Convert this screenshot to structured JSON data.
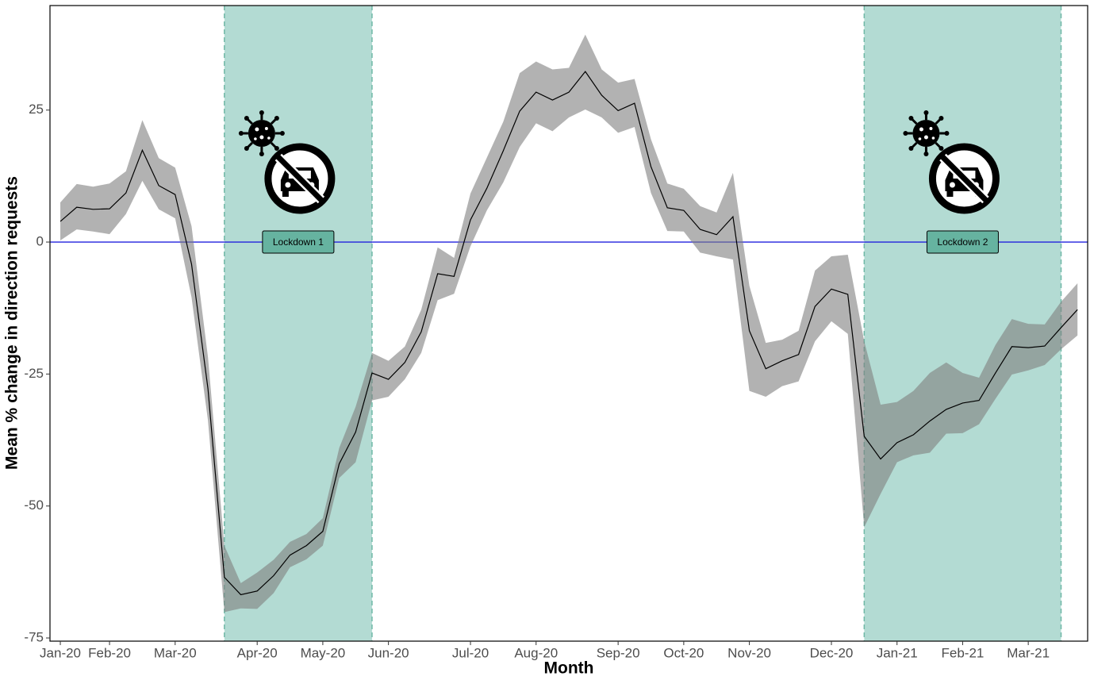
{
  "chart_data": {
    "type": "line",
    "x_label": "Month",
    "y_label": "Mean % change in direction requests",
    "categories": [
      "Jan-20",
      null,
      null,
      "Feb-20",
      null,
      null,
      null,
      "Mar-20",
      null,
      null,
      null,
      null,
      "Apr-20",
      null,
      null,
      null,
      "May-20",
      null,
      null,
      null,
      "Jun-20",
      null,
      null,
      null,
      null,
      "Jul-20",
      null,
      null,
      null,
      "Aug-20",
      null,
      null,
      null,
      null,
      "Sep-20",
      null,
      null,
      null,
      "Oct-20",
      null,
      null,
      null,
      "Nov-20",
      null,
      null,
      null,
      null,
      "Dec-20",
      null,
      null,
      null,
      "Jan-21",
      null,
      null,
      null,
      "Feb-21",
      null,
      null,
      null,
      "Mar-21",
      null,
      null,
      null
    ],
    "series": [
      {
        "color": "#000000",
        "band_color": "#7f7f7f",
        "values": [
          3.9,
          6.6,
          6.2,
          6.3,
          9.3,
          17.4,
          10.7,
          9.0,
          -4.2,
          -27.8,
          -63.5,
          -66.8,
          -66.1,
          -63.2,
          -59.3,
          -57.5,
          -54.8,
          -42,
          -36,
          -24.8,
          -26,
          -22.8,
          -17,
          -6,
          -6.5,
          4.2,
          10.2,
          17.3,
          24.8,
          28.4,
          26.9,
          28.4,
          32.3,
          27.8,
          24.9,
          26.3,
          14.3,
          6.5,
          6,
          2.4,
          1.4,
          4.8,
          -16.8,
          -24,
          -22.5,
          -21.3,
          -12.2,
          -8.9,
          -9.9,
          -36.8,
          -41.1,
          -38,
          -36.5,
          -33.9,
          -31.7,
          -30.5,
          -30,
          -24.8,
          -19.8,
          -20,
          -19.7,
          -16.2,
          -12.8
        ],
        "lower": [
          0.3,
          2.4,
          2,
          1.5,
          5.3,
          11.6,
          6.2,
          4.5,
          -10.5,
          -33.8,
          -70.1,
          -69.4,
          -69.5,
          -66.5,
          -61.6,
          -60.1,
          -57.5,
          -44.7,
          -41.7,
          -30,
          -29.3,
          -26,
          -21,
          -11,
          -9.8,
          -0.8,
          6,
          11.3,
          18,
          22.5,
          21,
          23.6,
          25.1,
          23.6,
          20.7,
          21.8,
          9.3,
          2.1,
          2,
          -2,
          -2.7,
          -3.3,
          -28.2,
          -29.3,
          -27.3,
          -26.4,
          -18.8,
          -15,
          -17.4,
          -54,
          -47.7,
          -41.7,
          -40.4,
          -39.9,
          -36.3,
          -36.2,
          -34.5,
          -29.7,
          -25.1,
          -24.3,
          -23.3,
          -20.3,
          -17.7
        ],
        "upper": [
          7.5,
          11,
          10.5,
          11.1,
          13.4,
          23.1,
          15.9,
          14.1,
          3,
          -21.8,
          -57.5,
          -64.6,
          -62.6,
          -60.2,
          -56.8,
          -55.3,
          -52.3,
          -39,
          -31.2,
          -21,
          -22.5,
          -19.8,
          -12.8,
          -1,
          -3,
          9.2,
          16,
          22.8,
          32,
          34.2,
          32.7,
          33,
          39.3,
          32.7,
          30.2,
          30.9,
          19.5,
          11.1,
          10.1,
          6.8,
          5.6,
          13.1,
          -8.3,
          -19.1,
          -18.5,
          -16.8,
          -5.4,
          -2.7,
          -2.4,
          -18.8,
          -30.8,
          -30.3,
          -28.2,
          -24.8,
          -22.8,
          -24.8,
          -25.7,
          -19.5,
          -14.6,
          -15.5,
          -15.6,
          -11.3,
          -7.8
        ]
      }
    ],
    "ylim": [
      -75.6,
      44.8
    ],
    "yticks": [
      -75,
      -50,
      -25,
      0,
      25
    ],
    "hline": {
      "value": 0,
      "color": "#2222dd"
    },
    "shaded_regions": [
      {
        "label": "Lockdown 1",
        "from": 10,
        "to": 19,
        "color": "#b3dbd3",
        "border": "#6fb8a6",
        "label_color": "#66b3a0"
      },
      {
        "label": "Lockdown 2",
        "from": 49,
        "to": 61,
        "color": "#b3dbd3",
        "border": "#6fb8a6",
        "label_color": "#66b3a0"
      }
    ]
  }
}
